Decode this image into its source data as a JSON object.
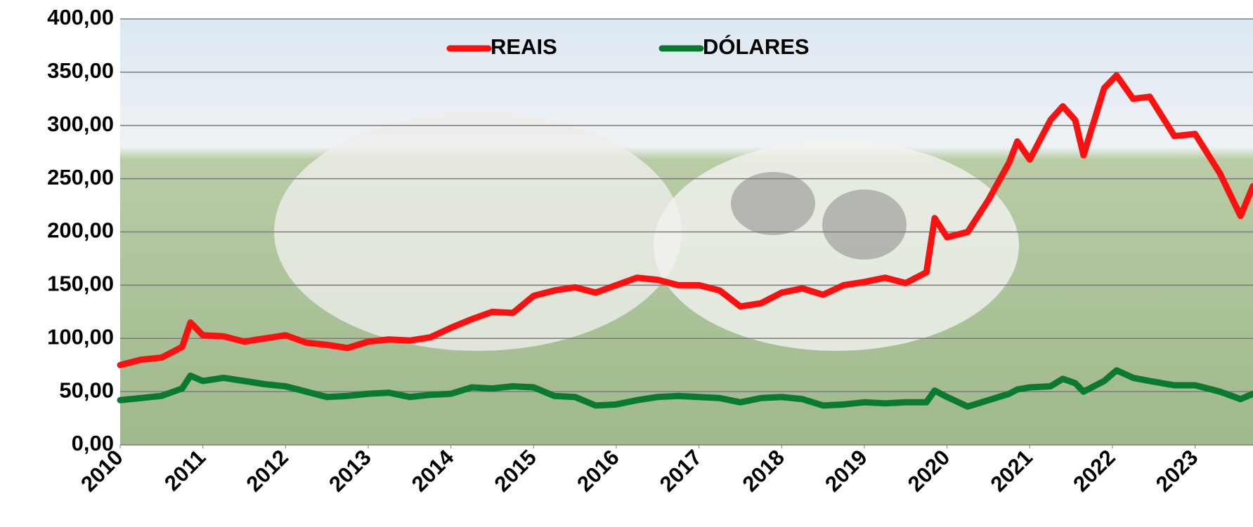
{
  "chart_data": {
    "type": "line",
    "x": [
      2010,
      2010.25,
      2010.5,
      2010.75,
      2010.85,
      2011,
      2011.25,
      2011.5,
      2011.75,
      2012,
      2012.25,
      2012.5,
      2012.75,
      2013,
      2013.25,
      2013.5,
      2013.75,
      2014,
      2014.25,
      2014.5,
      2014.75,
      2015,
      2015.25,
      2015.5,
      2015.75,
      2016,
      2016.25,
      2016.5,
      2016.75,
      2017,
      2017.25,
      2017.5,
      2017.75,
      2018,
      2018.25,
      2018.5,
      2018.75,
      2019,
      2019.25,
      2019.5,
      2019.75,
      2019.85,
      2020,
      2020.25,
      2020.5,
      2020.75,
      2020.85,
      2021,
      2021.25,
      2021.4,
      2021.55,
      2021.65,
      2021.9,
      2022.05,
      2022.25,
      2022.45,
      2022.75,
      2023,
      2023.3,
      2023.55,
      2023.7
    ],
    "series": [
      {
        "name": "REAIS",
        "color": "#ff1010",
        "values": [
          75,
          80,
          82,
          92,
          115,
          103,
          102,
          97,
          100,
          103,
          96,
          94,
          91,
          97,
          99,
          98,
          101,
          110,
          118,
          125,
          124,
          140,
          145,
          148,
          143,
          150,
          157,
          155,
          150,
          150,
          145,
          130,
          133,
          143,
          147,
          141,
          150,
          153,
          157,
          152,
          162,
          213,
          195,
          200,
          230,
          265,
          285,
          268,
          305,
          318,
          305,
          272,
          335,
          347,
          325,
          327,
          290,
          292,
          255,
          215,
          243
        ]
      },
      {
        "name": "DÓLARES",
        "color": "#0a7a2e",
        "values": [
          42,
          44,
          46,
          53,
          65,
          60,
          63,
          60,
          57,
          55,
          50,
          45,
          46,
          48,
          49,
          45,
          47,
          48,
          54,
          53,
          55,
          54,
          46,
          45,
          37,
          38,
          42,
          45,
          46,
          45,
          44,
          40,
          44,
          45,
          43,
          37,
          38,
          40,
          39,
          40,
          40,
          51,
          45,
          36,
          42,
          48,
          52,
          54,
          55,
          62,
          58,
          50,
          60,
          70,
          63,
          60,
          56,
          56,
          50,
          43,
          48
        ]
      }
    ],
    "xlim": [
      2010,
      2023.7
    ],
    "xticks": [
      2010,
      2011,
      2012,
      2013,
      2014,
      2015,
      2016,
      2017,
      2018,
      2019,
      2020,
      2021,
      2022,
      2023
    ],
    "ylim": [
      0,
      400
    ],
    "yticks": [
      {
        "value": 0,
        "label": "0,00"
      },
      {
        "value": 50,
        "label": "50,00"
      },
      {
        "value": 100,
        "label": "100,00"
      },
      {
        "value": 150,
        "label": "150,00"
      },
      {
        "value": 200,
        "label": "200,00"
      },
      {
        "value": 250,
        "label": "250,00"
      },
      {
        "value": 300,
        "label": "300,00"
      },
      {
        "value": 350,
        "label": "350,00"
      },
      {
        "value": 400,
        "label": "400,00"
      }
    ],
    "grid": true,
    "legend": "top"
  }
}
